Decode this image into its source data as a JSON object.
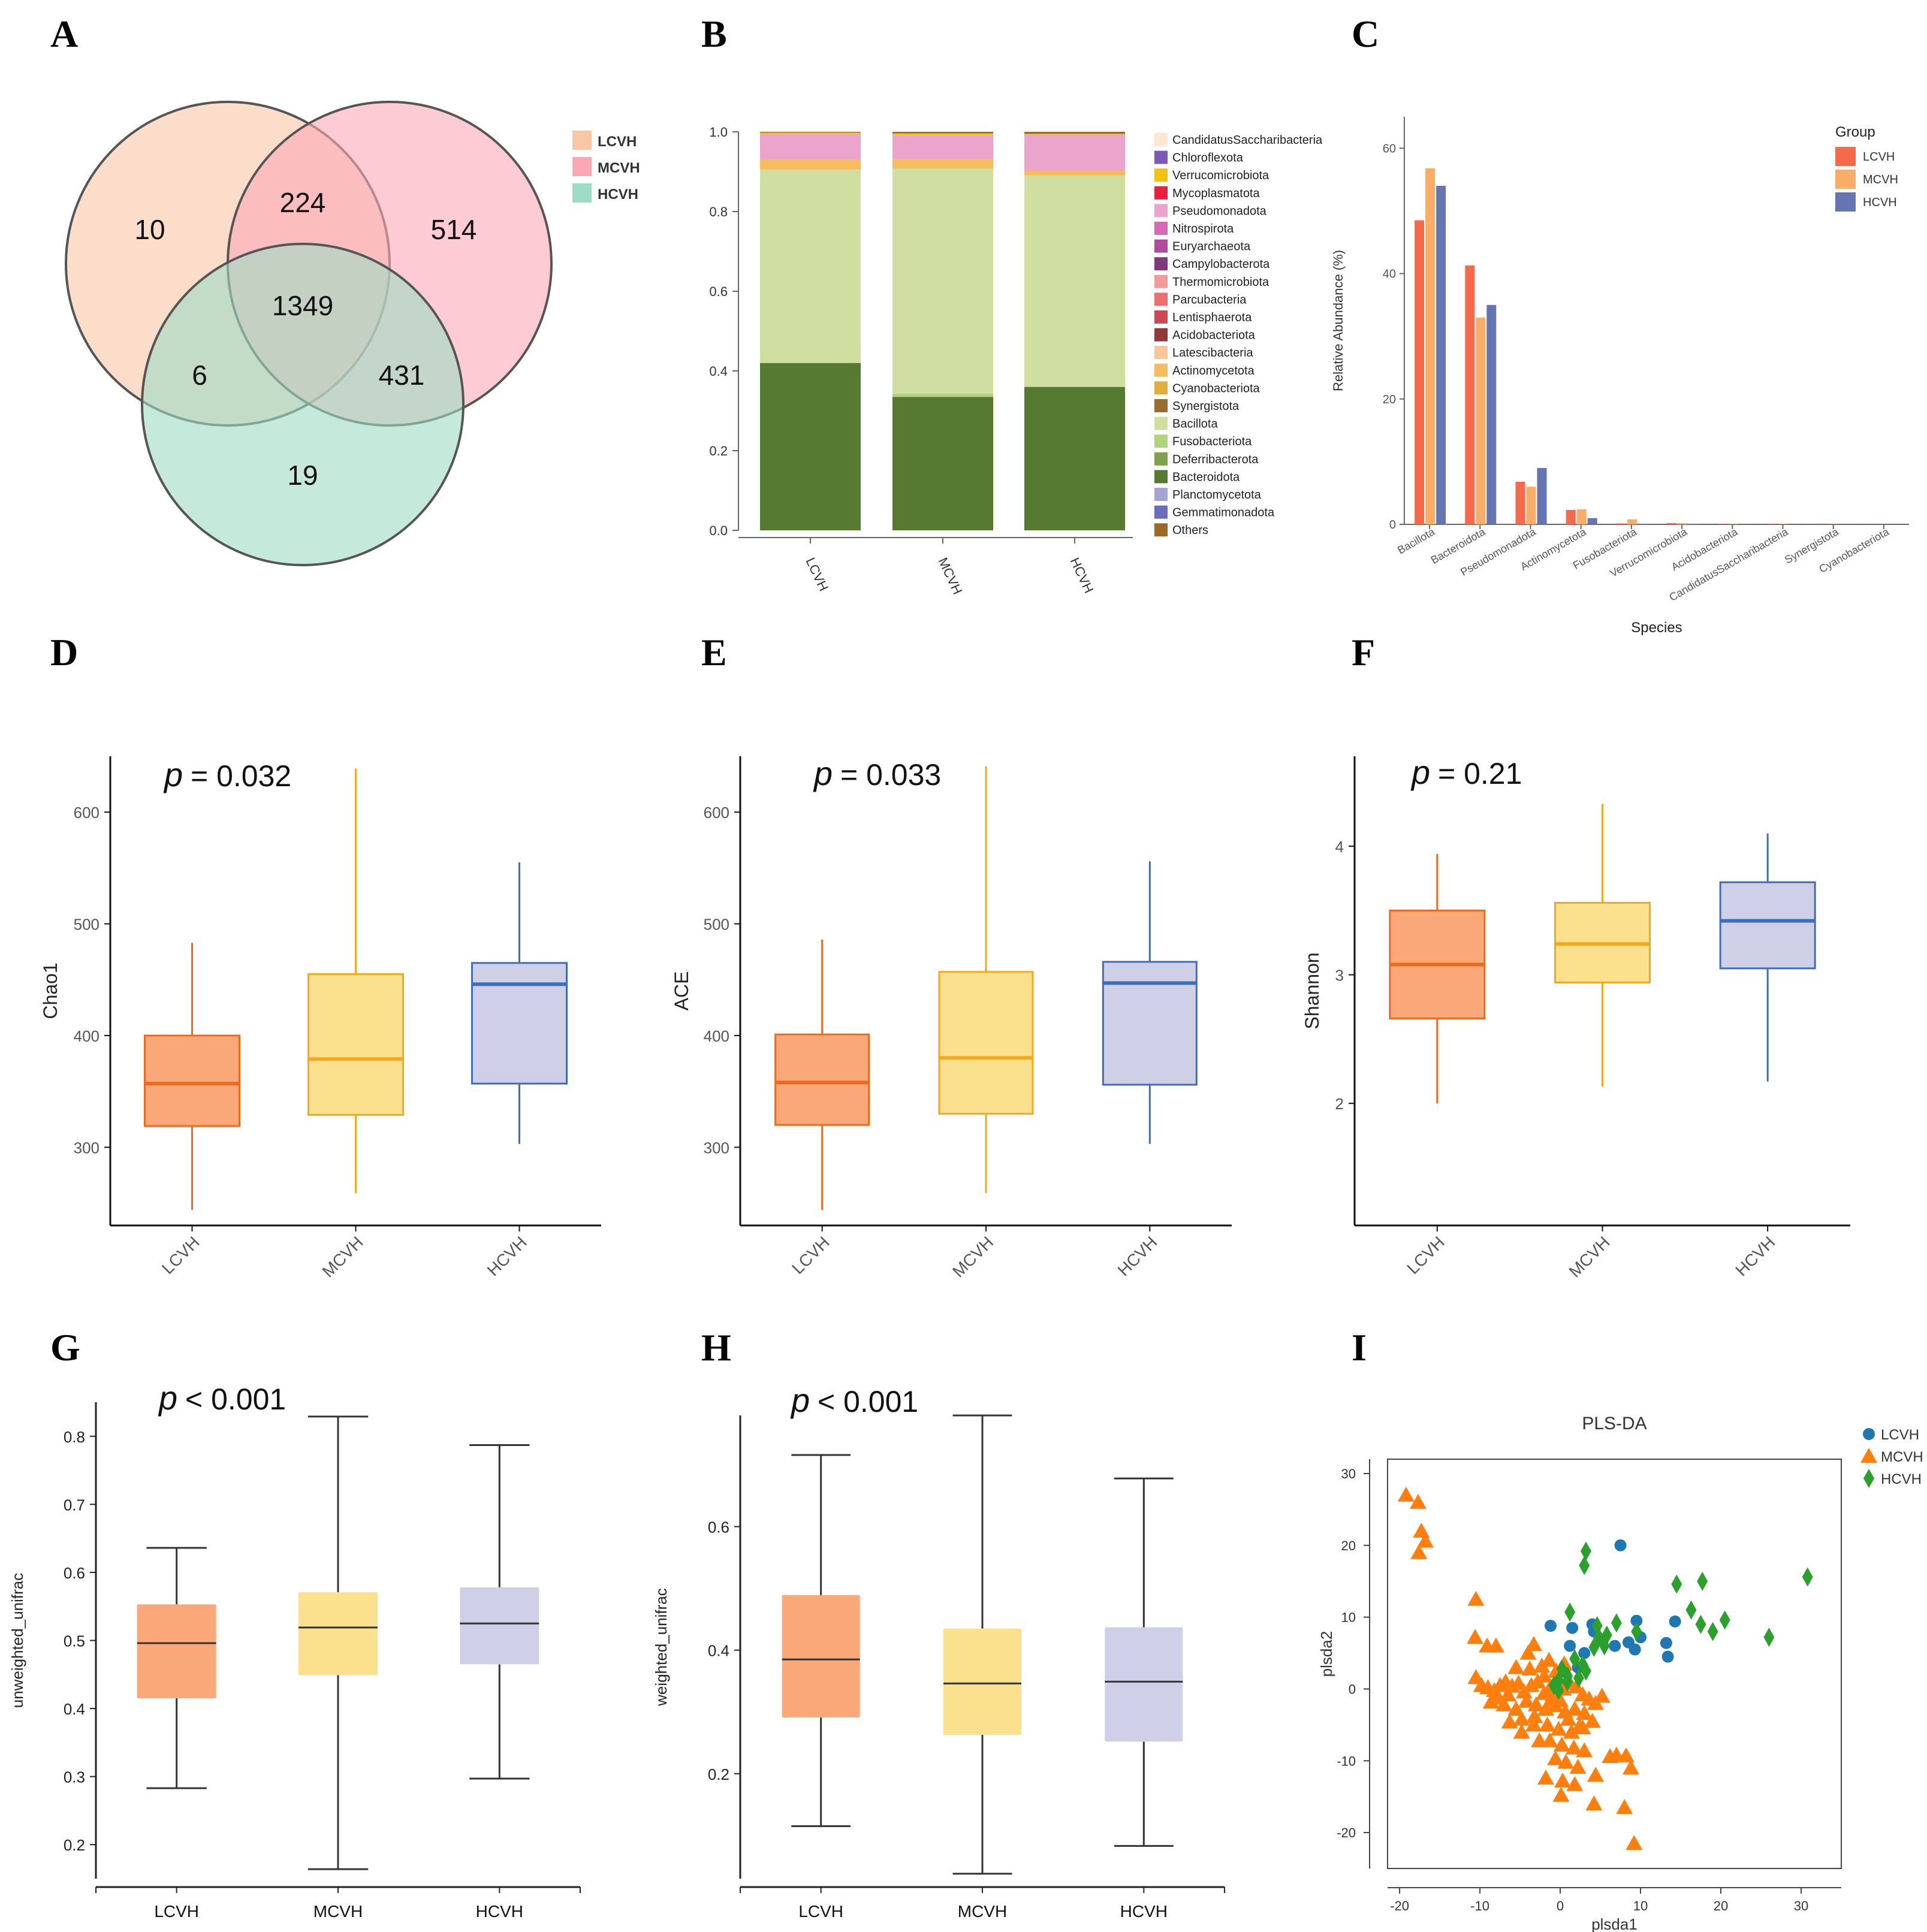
{
  "chart_data": [
    {
      "panel": "A",
      "type": "venn",
      "sets": [
        "LCVH",
        "MCVH",
        "HCVH"
      ],
      "colors": [
        "#f9c7a6",
        "#fba8b5",
        "#9fdcc5"
      ],
      "regions": {
        "L_only": "10",
        "M_only": "514",
        "H_only": "19",
        "LM": "224",
        "LH": "6",
        "MH": "431",
        "LMH": "1349"
      },
      "legend": [
        "LCVH",
        "MCVH",
        "HCVH"
      ]
    },
    {
      "panel": "B",
      "type": "stacked_bar",
      "categories": [
        "LCVH",
        "MCVH",
        "HCVH"
      ],
      "ylim": [
        0,
        1
      ],
      "yticks": [
        "0.0",
        "0.2",
        "0.4",
        "0.6",
        "0.8",
        "1.0"
      ],
      "series": [
        {
          "name": "Bacteroidota",
          "color": "#577a33",
          "values": [
            0.42,
            0.335,
            0.36
          ]
        },
        {
          "name": "Fusobacteriota",
          "color": "#aed57e",
          "values": [
            0.0,
            0.008,
            0.0
          ]
        },
        {
          "name": "Bacillota",
          "color": "#d0deA1",
          "values": [
            0.485,
            0.565,
            0.53
          ]
        },
        {
          "name": "Actinomycetota",
          "color": "#f5bd5e",
          "values": [
            0.025,
            0.024,
            0.013
          ]
        },
        {
          "name": "Pseudomonadota",
          "color": "#eba4cc",
          "values": [
            0.065,
            0.06,
            0.09
          ]
        },
        {
          "name": "Verrucomicrobiota",
          "color": "#f2c40f",
          "values": [
            0.003,
            0.004,
            0.002
          ]
        },
        {
          "name": "Others",
          "color": "#9c6a28",
          "values": [
            0.002,
            0.004,
            0.005
          ]
        }
      ],
      "legend": [
        {
          "name": "CandidatusSaccharibacteria",
          "color": "#fde7d2"
        },
        {
          "name": "Chloroflexota",
          "color": "#7c5ab2"
        },
        {
          "name": "Verrucomicrobiota",
          "color": "#f2c40f"
        },
        {
          "name": "Mycoplasmatota",
          "color": "#e8213f"
        },
        {
          "name": "Pseudomonadota",
          "color": "#eba4cc"
        },
        {
          "name": "Nitrospirota",
          "color": "#d66ab4"
        },
        {
          "name": "Euryarchaeota",
          "color": "#b04a9c"
        },
        {
          "name": "Campylobacterota",
          "color": "#7c3a7c"
        },
        {
          "name": "Thermomicrobiota",
          "color": "#f49a9a"
        },
        {
          "name": "Parcubacteria",
          "color": "#ee6d71"
        },
        {
          "name": "Lentisphaerota",
          "color": "#c94a52"
        },
        {
          "name": "Acidobacteriota",
          "color": "#913a3a"
        },
        {
          "name": "Latescibacteria",
          "color": "#f6c79b"
        },
        {
          "name": "Actinomycetota",
          "color": "#f5bd5e"
        },
        {
          "name": "Cyanobacteriota",
          "color": "#e0ae3c"
        },
        {
          "name": "Synergistota",
          "color": "#9a6d2e"
        },
        {
          "name": "Bacillota",
          "color": "#d0dea1"
        },
        {
          "name": "Fusobacteriota",
          "color": "#aed57e"
        },
        {
          "name": "Deferribacterota",
          "color": "#7fa24a"
        },
        {
          "name": "Bacteroidota",
          "color": "#577a33"
        },
        {
          "name": "Planctomycetota",
          "color": "#a7a4d4"
        },
        {
          "name": "Gemmatimonadota",
          "color": "#6c6db8"
        },
        {
          "name": "Others",
          "color": "#9c6a28"
        }
      ]
    },
    {
      "panel": "C",
      "type": "bar",
      "xlabel": "Species",
      "ylabel": "Relative Abundance (%)",
      "ylim": [
        0,
        65
      ],
      "yticks": [
        "0",
        "20",
        "40",
        "60"
      ],
      "categories": [
        "Bacillota",
        "Bacteroidota",
        "Pseudomonadota",
        "Actinomycetota",
        "Fusobacteriota",
        "Verrucomicrobiota",
        "Acidobacteriota",
        "CandidatusSaccharibacteria",
        "Synergistota",
        "Cyanobacteriota"
      ],
      "legend_title": "Group",
      "series": [
        {
          "name": "LCVH",
          "color": "#f56a4b",
          "values": [
            48.5,
            41.3,
            6.8,
            2.3,
            0.15,
            0.2,
            0.05,
            0.05,
            0.03,
            0.02
          ]
        },
        {
          "name": "MCVH",
          "color": "#f8ae67",
          "values": [
            56.8,
            33.0,
            6.0,
            2.4,
            0.8,
            0.2,
            0.05,
            0.05,
            0.03,
            0.02
          ]
        },
        {
          "name": "HCVH",
          "color": "#6475b2",
          "values": [
            54.0,
            35.0,
            9.0,
            1.0,
            0.1,
            0.1,
            0.05,
            0.05,
            0.03,
            0.02
          ]
        }
      ]
    },
    {
      "panel": "D",
      "type": "boxplot",
      "ylabel": "Chao1",
      "p_label": "p",
      "p_value": "= 0.032",
      "ylim": [
        230,
        650
      ],
      "yticks": [
        "300",
        "400",
        "500",
        "600"
      ],
      "categories": [
        "LCVH",
        "MCVH",
        "HCVH"
      ],
      "boxes": [
        {
          "name": "LCVH",
          "min": 244,
          "q1": 319,
          "median": 357,
          "q3": 400,
          "max": 483
        },
        {
          "name": "MCVH",
          "min": 259,
          "q1": 329,
          "median": 379,
          "q3": 455,
          "max": 639
        },
        {
          "name": "HCVH",
          "min": 303,
          "q1": 357,
          "median": 446,
          "q3": 465,
          "max": 555
        }
      ]
    },
    {
      "panel": "E",
      "type": "boxplot",
      "ylabel": "ACE",
      "p_label": "p",
      "p_value": "= 0.033",
      "ylim": [
        230,
        650
      ],
      "yticks": [
        "300",
        "400",
        "500",
        "600"
      ],
      "categories": [
        "LCVH",
        "MCVH",
        "HCVH"
      ],
      "boxes": [
        {
          "name": "LCVH",
          "min": 244,
          "q1": 320,
          "median": 358,
          "q3": 401,
          "max": 486
        },
        {
          "name": "MCVH",
          "min": 259,
          "q1": 330,
          "median": 380,
          "q3": 457,
          "max": 641
        },
        {
          "name": "HCVH",
          "min": 303,
          "q1": 356,
          "median": 447,
          "q3": 466,
          "max": 556
        }
      ]
    },
    {
      "panel": "F",
      "type": "boxplot",
      "ylabel": "Shannon",
      "p_label": "p",
      "p_value": "= 0.21",
      "ylim": [
        1.05,
        4.7
      ],
      "yticks": [
        "2",
        "3",
        "4"
      ],
      "categories": [
        "LCVH",
        "MCVH",
        "HCVH"
      ],
      "boxes": [
        {
          "name": "LCVH",
          "min": 2.0,
          "q1": 2.66,
          "median": 3.08,
          "q3": 3.5,
          "max": 3.94
        },
        {
          "name": "MCVH",
          "min": 2.13,
          "q1": 2.94,
          "median": 3.24,
          "q3": 3.56,
          "max": 4.33
        },
        {
          "name": "HCVH",
          "min": 2.17,
          "q1": 3.05,
          "median": 3.42,
          "q3": 3.72,
          "max": 4.1
        }
      ]
    },
    {
      "panel": "G",
      "type": "boxplot",
      "ylabel": "unweighted_unifrac",
      "p_label": "p",
      "p_value": "< 0.001",
      "ylim": [
        0.15,
        0.85
      ],
      "yticks": [
        "0.2",
        "0.3",
        "0.4",
        "0.5",
        "0.6",
        "0.7",
        "0.8"
      ],
      "categories": [
        "LCVH",
        "MCVH",
        "HCVH"
      ],
      "boxes": [
        {
          "name": "LCVH",
          "min": 0.283,
          "q1": 0.415,
          "median": 0.496,
          "q3": 0.553,
          "max": 0.636
        },
        {
          "name": "MCVH",
          "min": 0.164,
          "q1": 0.449,
          "median": 0.519,
          "q3": 0.571,
          "max": 0.829
        },
        {
          "name": "HCVH",
          "min": 0.297,
          "q1": 0.465,
          "median": 0.525,
          "q3": 0.578,
          "max": 0.787
        }
      ]
    },
    {
      "panel": "H",
      "type": "boxplot",
      "ylabel": "weighted_unifrac",
      "p_label": "p",
      "p_value": "< 0.001",
      "ylim": [
        0.03,
        0.78
      ],
      "yticks": [
        "0.2",
        "0.4",
        "0.6"
      ],
      "categories": [
        "LCVH",
        "MCVH",
        "HCVH"
      ],
      "boxes": [
        {
          "name": "LCVH",
          "min": 0.115,
          "q1": 0.291,
          "median": 0.385,
          "q3": 0.489,
          "max": 0.716
        },
        {
          "name": "MCVH",
          "min": 0.038,
          "q1": 0.263,
          "median": 0.346,
          "q3": 0.435,
          "max": 0.78
        },
        {
          "name": "HCVH",
          "min": 0.083,
          "q1": 0.252,
          "median": 0.349,
          "q3": 0.437,
          "max": 0.678
        }
      ]
    },
    {
      "panel": "I",
      "type": "scatter",
      "title": "PLS-DA",
      "xlabel": "plsda1",
      "ylabel": "plsda2",
      "xlim": [
        -21.5,
        35
      ],
      "ylim": [
        -25,
        32
      ],
      "xticks": [
        "-20",
        "-10",
        "0",
        "10",
        "20",
        "30"
      ],
      "yticks": [
        "-20",
        "-10",
        "0",
        "10",
        "20",
        "30"
      ],
      "series": [
        {
          "name": "LCVH",
          "marker": "circle",
          "color": "#1f77b4",
          "points": [
            [
              -1.2,
              8.8
            ],
            [
              1.5,
              8.5
            ],
            [
              4,
              9
            ],
            [
              7.5,
              20
            ],
            [
              9.5,
              9.5
            ],
            [
              10,
              7.2
            ],
            [
              8.5,
              6.5
            ],
            [
              6.8,
              6
            ],
            [
              13.2,
              6.4
            ],
            [
              13.4,
              4.5
            ],
            [
              14.3,
              9.4
            ],
            [
              9.3,
              5.5
            ],
            [
              1.2,
              6
            ],
            [
              3,
              5
            ],
            [
              2.2,
              3
            ],
            [
              0.6,
              2.8
            ],
            [
              4.2,
              8
            ]
          ]
        },
        {
          "name": "MCVH",
          "marker": "triangle",
          "color": "#ff7f0e",
          "points": [
            [
              -19.2,
              27
            ],
            [
              -17.7,
              26
            ],
            [
              -17.3,
              22
            ],
            [
              -16.8,
              20.6
            ],
            [
              -17.6,
              19
            ],
            [
              -10.5,
              12.5
            ],
            [
              -10.6,
              7.2
            ],
            [
              -9.1,
              6
            ],
            [
              -8,
              6
            ],
            [
              -3.3,
              6.2
            ],
            [
              -4,
              5
            ],
            [
              -10.5,
              1.6
            ],
            [
              -9.8,
              0.5
            ],
            [
              -9,
              0.2
            ],
            [
              -8.2,
              -0.2
            ],
            [
              -7.5,
              0.5
            ],
            [
              -6.8,
              1
            ],
            [
              -6,
              0.4
            ],
            [
              -5.2,
              0.8
            ],
            [
              -4.5,
              -0.4
            ],
            [
              -3.6,
              0.5
            ],
            [
              -2.8,
              1
            ],
            [
              -2,
              -0.6
            ],
            [
              -1.2,
              0.3
            ],
            [
              -0.4,
              1.2
            ],
            [
              0.4,
              0
            ],
            [
              1.2,
              0.8
            ],
            [
              2,
              0.3
            ],
            [
              2.8,
              -0.8
            ],
            [
              3.6,
              -1.4
            ],
            [
              4.4,
              -2
            ],
            [
              5.2,
              -1
            ],
            [
              -8.6,
              -1.8
            ],
            [
              -7,
              -2.2
            ],
            [
              -5.5,
              -2.8
            ],
            [
              -4.2,
              -1.7
            ],
            [
              -3,
              -2.2
            ],
            [
              -1.8,
              -2.8
            ],
            [
              -0.6,
              -2.3
            ],
            [
              0.6,
              -3.2
            ],
            [
              1.8,
              -2.8
            ],
            [
              3,
              -3.4
            ],
            [
              4,
              -4.5
            ],
            [
              -6.3,
              -4.6
            ],
            [
              -4.8,
              -4.2
            ],
            [
              -3.3,
              -5
            ],
            [
              -1.6,
              -5
            ],
            [
              -0.2,
              -5.6
            ],
            [
              1.4,
              -6
            ],
            [
              2.8,
              -5.4
            ],
            [
              -2.6,
              -7.2
            ],
            [
              -1.3,
              -7.2
            ],
            [
              0.2,
              -7.8
            ],
            [
              1.7,
              -8.2
            ],
            [
              3,
              -8.6
            ],
            [
              -0.6,
              -9.7
            ],
            [
              0.7,
              -10.2
            ],
            [
              2.2,
              -10.9
            ],
            [
              -1.8,
              -12.4
            ],
            [
              0.3,
              -12.8
            ],
            [
              1.8,
              -13.3
            ],
            [
              0.1,
              -14.8
            ],
            [
              6.2,
              -9.4
            ],
            [
              7,
              -9.2
            ],
            [
              8.2,
              -9.3
            ],
            [
              8.8,
              -11
            ],
            [
              4.4,
              -12
            ],
            [
              4.2,
              -16
            ],
            [
              8,
              -16.5
            ],
            [
              9.2,
              -21.5
            ],
            [
              -2.3,
              3.2
            ],
            [
              -1.4,
              4
            ],
            [
              -0.5,
              2.5
            ],
            [
              0.5,
              3.5
            ],
            [
              -5.5,
              3
            ],
            [
              -3.8,
              2.8
            ],
            [
              -2,
              1.8
            ],
            [
              -6.5,
              -0.8
            ],
            [
              -7.8,
              -1.2
            ],
            [
              -3.2,
              -3.8
            ],
            [
              -0.9,
              -0.8
            ],
            [
              2.4,
              -5.2
            ],
            [
              0,
              -1.6
            ],
            [
              1,
              -4.2
            ],
            [
              -4.8,
              -6
            ],
            [
              -1.1,
              -1.5
            ]
          ]
        },
        {
          "name": "HCVH",
          "marker": "diamond",
          "color": "#2ca02c",
          "points": [
            [
              3.2,
              19.2
            ],
            [
              3,
              17.2
            ],
            [
              1.2,
              10.7
            ],
            [
              4.6,
              8.8
            ],
            [
              5.8,
              7.5
            ],
            [
              7,
              9.2
            ],
            [
              9.5,
              8
            ],
            [
              14.5,
              14.6
            ],
            [
              16.3,
              11
            ],
            [
              17.7,
              15
            ],
            [
              17.5,
              9
            ],
            [
              19,
              8
            ],
            [
              20.5,
              9.6
            ],
            [
              26,
              7.2
            ],
            [
              30.8,
              15.6
            ],
            [
              5.5,
              6
            ],
            [
              4.2,
              5.8
            ],
            [
              3.2,
              2.5
            ],
            [
              2.3,
              1.5
            ],
            [
              0.9,
              1.8
            ],
            [
              -0.2,
              1.2
            ],
            [
              -0.8,
              0.5
            ],
            [
              1.8,
              4.2
            ],
            [
              2.8,
              3.4
            ],
            [
              4.8,
              7.2
            ],
            [
              0.2,
              2.8
            ],
            [
              -0.2,
              -0.2
            ],
            [
              0.9,
              1
            ]
          ]
        }
      ],
      "legend": [
        "LCVH",
        "MCVH",
        "HCVH"
      ]
    }
  ],
  "panel_letters": [
    "A",
    "B",
    "C",
    "D",
    "E",
    "F",
    "G",
    "H",
    "I"
  ]
}
